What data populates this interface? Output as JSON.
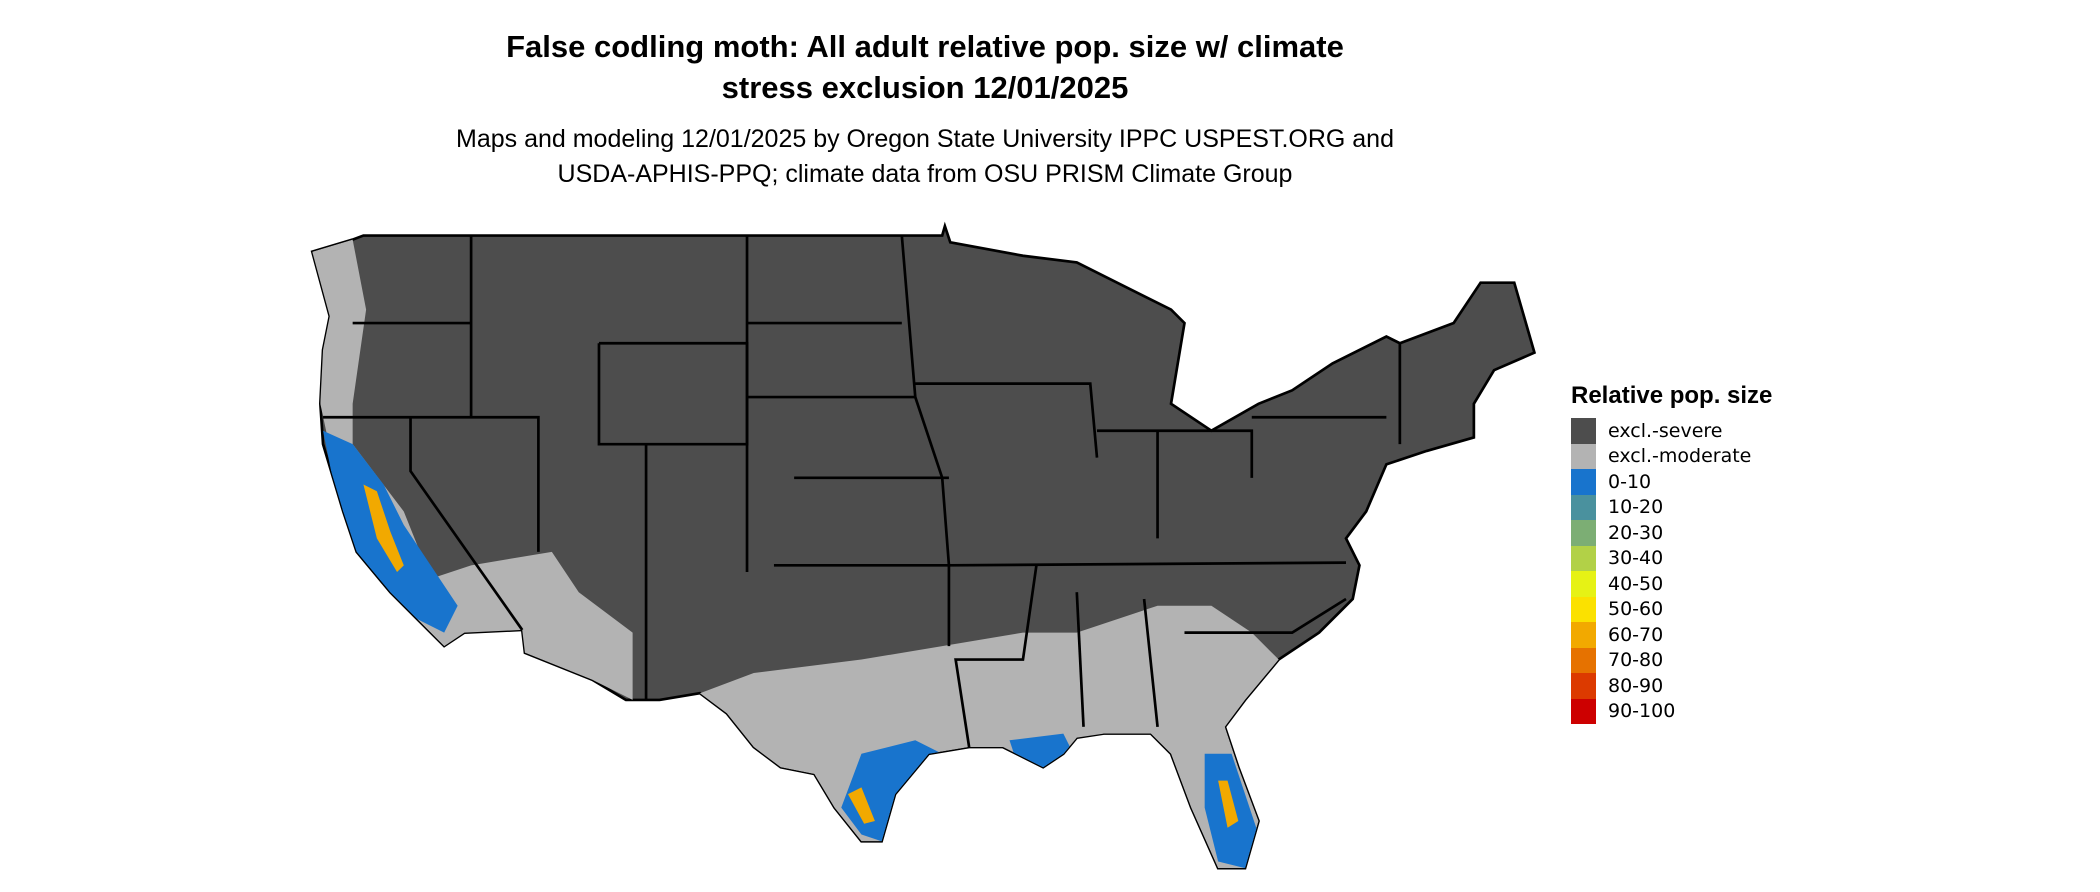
{
  "title_line1": "False codling moth: All adult relative pop. size w/ climate",
  "title_line2": "stress exclusion 12/01/2025",
  "subtitle_line1": "Maps and modeling 12/01/2025 by Oregon State University IPPC USPEST.ORG and",
  "subtitle_line2": "USDA-APHIS-PPQ; climate data from OSU PRISM Climate Group",
  "legend": {
    "title": "Relative pop. size",
    "items": [
      {
        "label": "excl.-severe",
        "color": "#4d4d4d"
      },
      {
        "label": "excl.-moderate",
        "color": "#b3b3b3"
      },
      {
        "label": "0-10",
        "color": "#1874cd"
      },
      {
        "label": "10-20",
        "color": "#4a919e"
      },
      {
        "label": "20-30",
        "color": "#7cae74"
      },
      {
        "label": "30-40",
        "color": "#b2d147"
      },
      {
        "label": "40-50",
        "color": "#e6f215"
      },
      {
        "label": "50-60",
        "color": "#fbe100"
      },
      {
        "label": "60-70",
        "color": "#f2a900"
      },
      {
        "label": "70-80",
        "color": "#e67200"
      },
      {
        "label": "80-90",
        "color": "#dc3a00"
      },
      {
        "label": "90-100",
        "color": "#cd0000"
      }
    ]
  }
}
